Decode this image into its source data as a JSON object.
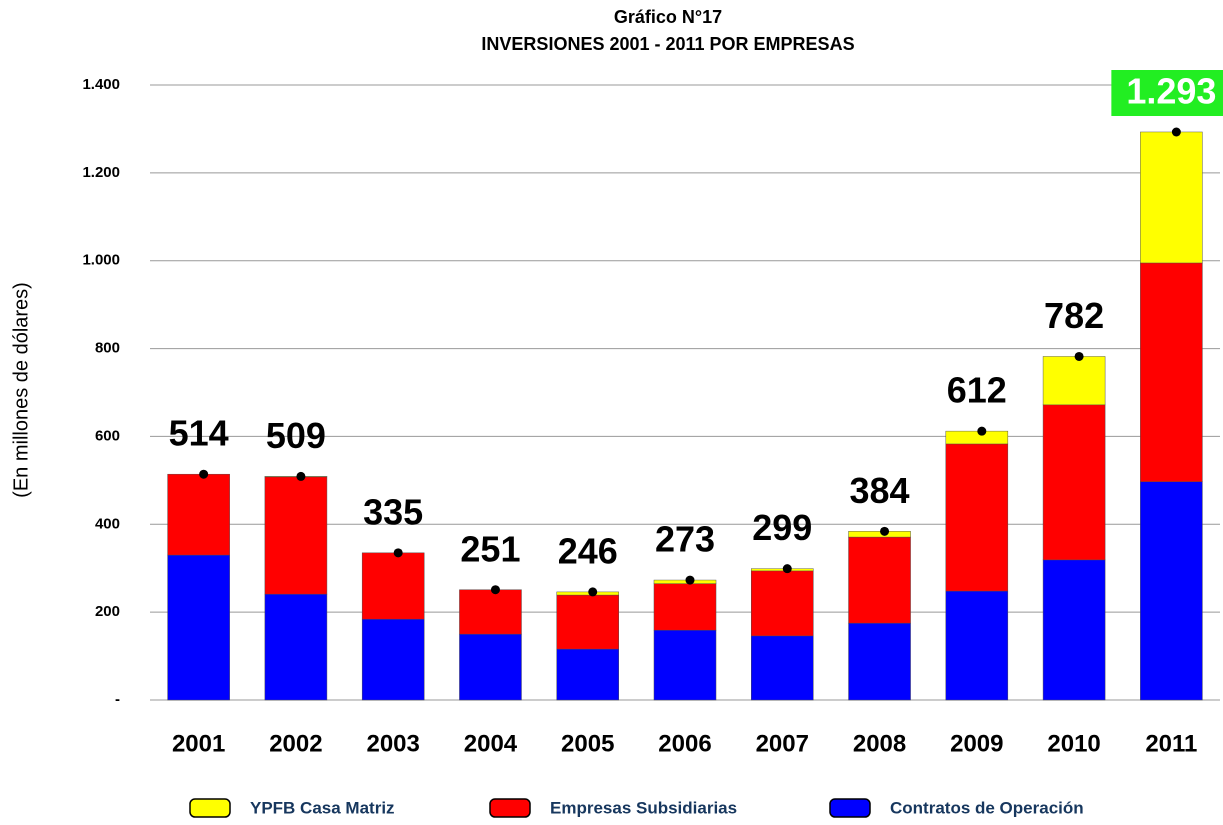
{
  "chart_data": {
    "type": "stacked_bar",
    "title": "Gráfico N°17",
    "subtitle": "INVERSIONES 2001 - 2011 POR EMPRESAS",
    "y_label": "(En millones de dólares)",
    "categories": [
      "2001",
      "2002",
      "2003",
      "2004",
      "2005",
      "2006",
      "2007",
      "2008",
      "2009",
      "2010",
      "2011"
    ],
    "series": [
      {
        "name": "YPFB Casa Matriz",
        "color": "#ffff00",
        "values": [
          0,
          1,
          0,
          0,
          7,
          8,
          5,
          13,
          29,
          110,
          298
        ]
      },
      {
        "name": "Empresas Subsidiarias",
        "color": "#ff0000",
        "values": [
          184,
          267,
          151,
          101,
          123,
          106,
          148,
          196,
          335,
          353,
          498
        ]
      },
      {
        "name": "Contratos de Operación",
        "color": "#0000ff",
        "values": [
          330,
          241,
          184,
          150,
          116,
          159,
          146,
          175,
          248,
          319,
          497
        ]
      }
    ],
    "totals": {
      "values": [
        514,
        509,
        335,
        251,
        246,
        273,
        299,
        384,
        612,
        782,
        1293
      ],
      "value_labels": [
        "514",
        "509",
        "335",
        "251",
        "246",
        "273",
        "299",
        "384",
        "612",
        "782",
        "1.293"
      ]
    },
    "ylim": [
      0,
      1400
    ],
    "yticks": [
      {
        "value": 0,
        "label": "-"
      },
      200,
      400,
      600,
      800,
      {
        "value": 1000,
        "label": "1.000"
      },
      {
        "value": 1200,
        "label": "1.200"
      },
      {
        "value": 1400,
        "label": "1.400"
      }
    ],
    "grid": true,
    "legend": "bottom"
  }
}
